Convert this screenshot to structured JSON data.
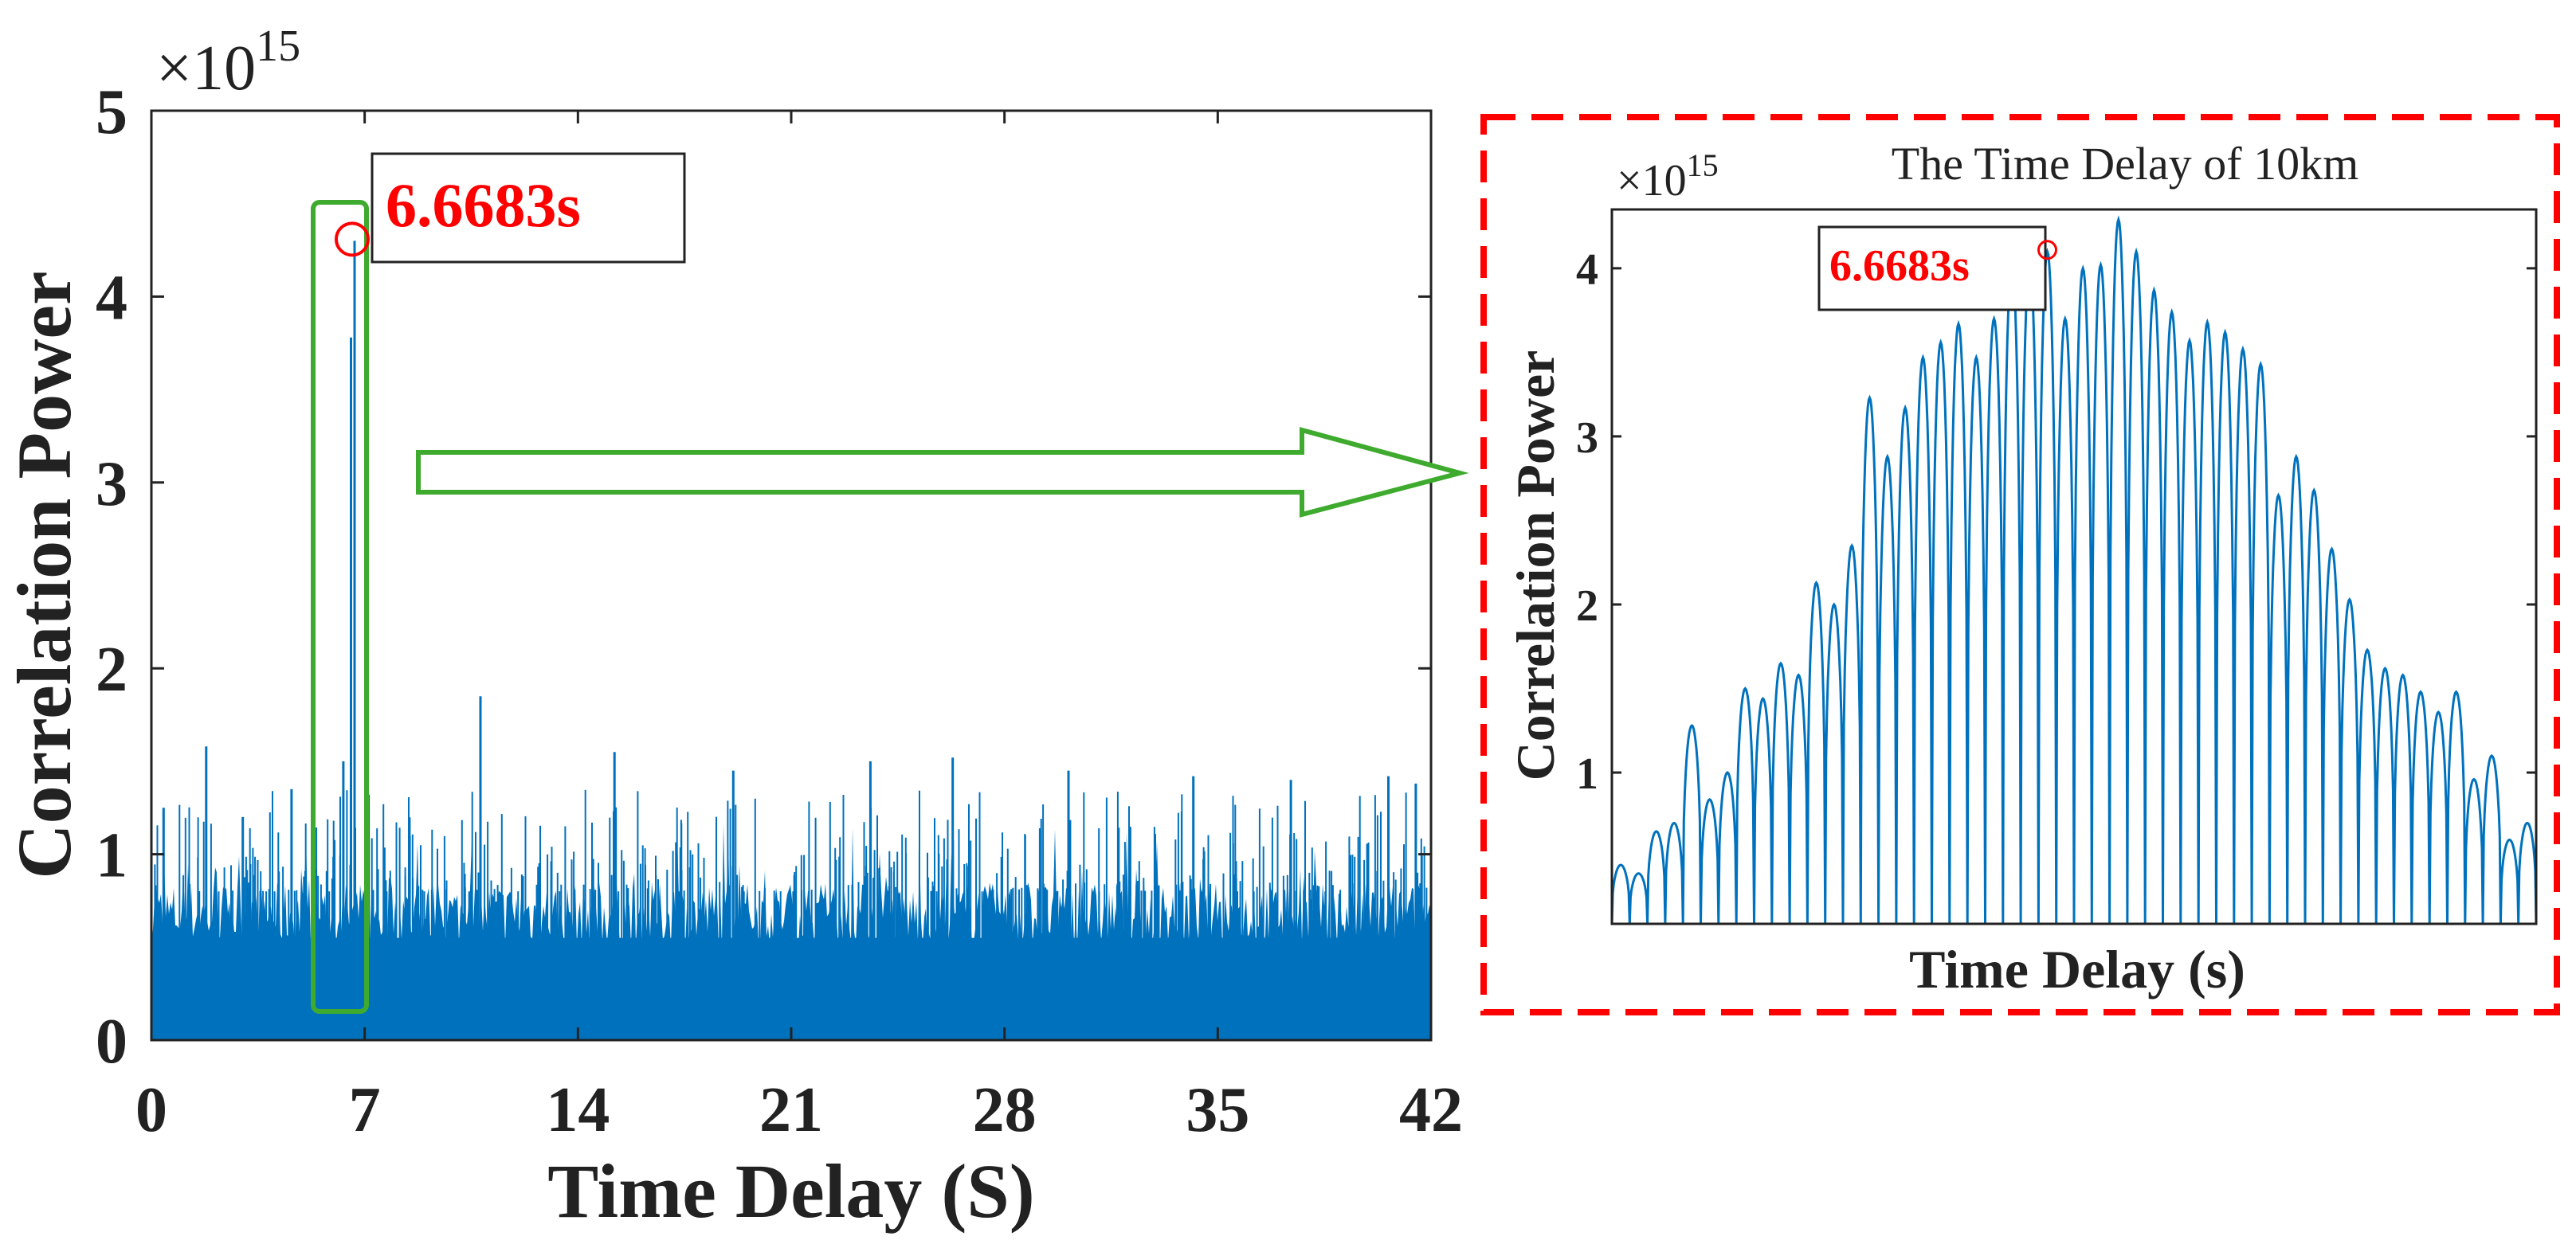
{
  "colors": {
    "series": "#0072BD",
    "marker": "#FF0000",
    "annotation_text": "#FF0000",
    "highlight_box": "#3EAA2E",
    "zoom_frame": "#FF0000",
    "axis": "#222222"
  },
  "chart_data": [
    {
      "type": "area",
      "title": "",
      "xlabel": "Time Delay (S)",
      "ylabel": "Correlation Power",
      "exponent_label": "×10",
      "exponent_power": "15",
      "xlim": [
        0,
        42
      ],
      "ylim": [
        0,
        5
      ],
      "y_scale": 1000000000000000.0,
      "xticks": [
        0,
        7,
        14,
        21,
        28,
        35,
        42
      ],
      "xtick_labels": [
        "0",
        "7",
        "14",
        "21",
        "28",
        "35",
        "42"
      ],
      "yticks": [
        0,
        1,
        2,
        3,
        4,
        5
      ],
      "ytick_labels": [
        "0",
        "1",
        "2",
        "3",
        "4",
        "5"
      ],
      "grid": false,
      "legend": "none",
      "noise_floor": 0.85,
      "peak": {
        "x": 6.6683,
        "y": 4.3,
        "label": "6.6683s"
      },
      "spikes": [
        {
          "x": 0.4,
          "y": 1.25
        },
        {
          "x": 1.8,
          "y": 1.58
        },
        {
          "x": 3.0,
          "y": 1.2
        },
        {
          "x": 4.6,
          "y": 1.35
        },
        {
          "x": 5.3,
          "y": 1.7
        },
        {
          "x": 6.3,
          "y": 1.5
        },
        {
          "x": 6.55,
          "y": 3.78
        },
        {
          "x": 6.6683,
          "y": 4.3
        },
        {
          "x": 10.8,
          "y": 1.85
        },
        {
          "x": 15.2,
          "y": 1.55
        },
        {
          "x": 19.1,
          "y": 1.45
        },
        {
          "x": 23.6,
          "y": 1.5
        },
        {
          "x": 26.3,
          "y": 1.52
        },
        {
          "x": 30.1,
          "y": 1.45
        },
        {
          "x": 34.2,
          "y": 1.42
        },
        {
          "x": 37.4,
          "y": 1.4
        },
        {
          "x": 40.6,
          "y": 1.42
        },
        {
          "x": 41.5,
          "y": 1.38
        }
      ]
    },
    {
      "type": "line",
      "title": "The Time Delay of 10km",
      "xlabel": "Time Delay (s)",
      "ylabel": "Correlation Power",
      "exponent_label": "×10",
      "exponent_power": "15",
      "xlim": [
        0,
        48
      ],
      "ylim": [
        0.1,
        4.35
      ],
      "y_scale": 1000000000000000.0,
      "yticks": [
        1,
        2,
        3,
        4
      ],
      "ytick_labels": [
        "1",
        "2",
        "3",
        "4"
      ],
      "xtick_labels": [],
      "grid": false,
      "legend": "none",
      "marker_lobe": 24,
      "marker_label": "6.6683s",
      "lobe_peaks": [
        0.45,
        0.4,
        0.65,
        0.7,
        1.28,
        0.84,
        1.0,
        1.5,
        1.44,
        1.65,
        1.58,
        2.13,
        2.0,
        2.35,
        3.23,
        2.88,
        3.17,
        3.47,
        3.56,
        3.67,
        3.47,
        3.7,
        4.02,
        4.03,
        4.1,
        3.7,
        4.0,
        4.02,
        4.29,
        4.1,
        3.87,
        3.74,
        3.57,
        3.68,
        3.62,
        3.52,
        3.43,
        2.65,
        2.88,
        2.68,
        2.33,
        2.03,
        1.73,
        1.62,
        1.58,
        1.48,
        1.36,
        1.48,
        0.96,
        1.1,
        0.6,
        0.7
      ]
    }
  ]
}
